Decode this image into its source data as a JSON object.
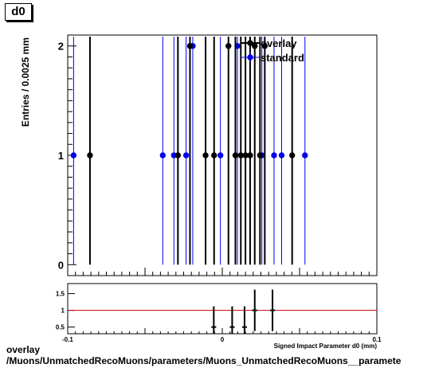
{
  "canvas_tag": "d0",
  "caption": {
    "line1": "overlay",
    "line2": "/Muons/UnmatchedRecoMuons/parameters/Muons_UnmatchedRecoMuons__paramete"
  },
  "colors": {
    "overlay": "#000000",
    "standard": "#0000ee",
    "ratio_line": "#cc0000"
  },
  "chart_data": [
    {
      "type": "scatter",
      "title": "",
      "xlabel": "",
      "ylabel": "Entries / 0.0025 mm",
      "xlim": [
        -0.1,
        0.1
      ],
      "ylim": [
        -0.1,
        2.1
      ],
      "yticks": [
        0,
        1,
        2
      ],
      "legend": {
        "placement": "top-right",
        "entries": [
          "overlay",
          "standard"
        ]
      },
      "series": [
        {
          "name": "standard",
          "color": "#0000ee",
          "x": [
            -0.0962,
            -0.0385,
            -0.0313,
            -0.0234,
            -0.0191,
            -0.0012,
            0.0098,
            0.0256,
            0.0335,
            0.0384,
            0.0535
          ],
          "y": [
            1,
            1,
            1,
            1,
            2,
            1,
            2,
            1,
            1,
            1,
            1
          ]
        },
        {
          "name": "overlay",
          "color": "#000000",
          "x": [
            -0.0856,
            -0.0287,
            -0.0209,
            -0.0108,
            -0.0053,
            0.004,
            0.0085,
            0.012,
            0.015,
            0.018,
            0.021,
            0.0244,
            0.0275,
            0.0452
          ],
          "y": [
            1,
            1,
            2,
            1,
            1,
            2,
            1,
            1,
            1,
            1,
            2,
            1,
            2,
            1
          ]
        }
      ]
    },
    {
      "type": "scatter",
      "title": "",
      "xlabel": "Signed Impact Parameter d0 (mm)",
      "ylabel": "",
      "xlim": [
        -0.1,
        0.1
      ],
      "ylim": [
        0.3,
        1.8
      ],
      "yticks": [
        0.5,
        1,
        1.5
      ],
      "xticks": [
        -0.1,
        0,
        0.1
      ],
      "reference_line": 1,
      "series": [
        {
          "name": "ratio",
          "color": "#000000",
          "x": [
            -0.0055,
            0.0064,
            0.0144,
            0.021,
            0.0325
          ],
          "y": [
            0.5,
            0.5,
            0.5,
            1.0,
            1.0
          ]
        }
      ]
    }
  ]
}
